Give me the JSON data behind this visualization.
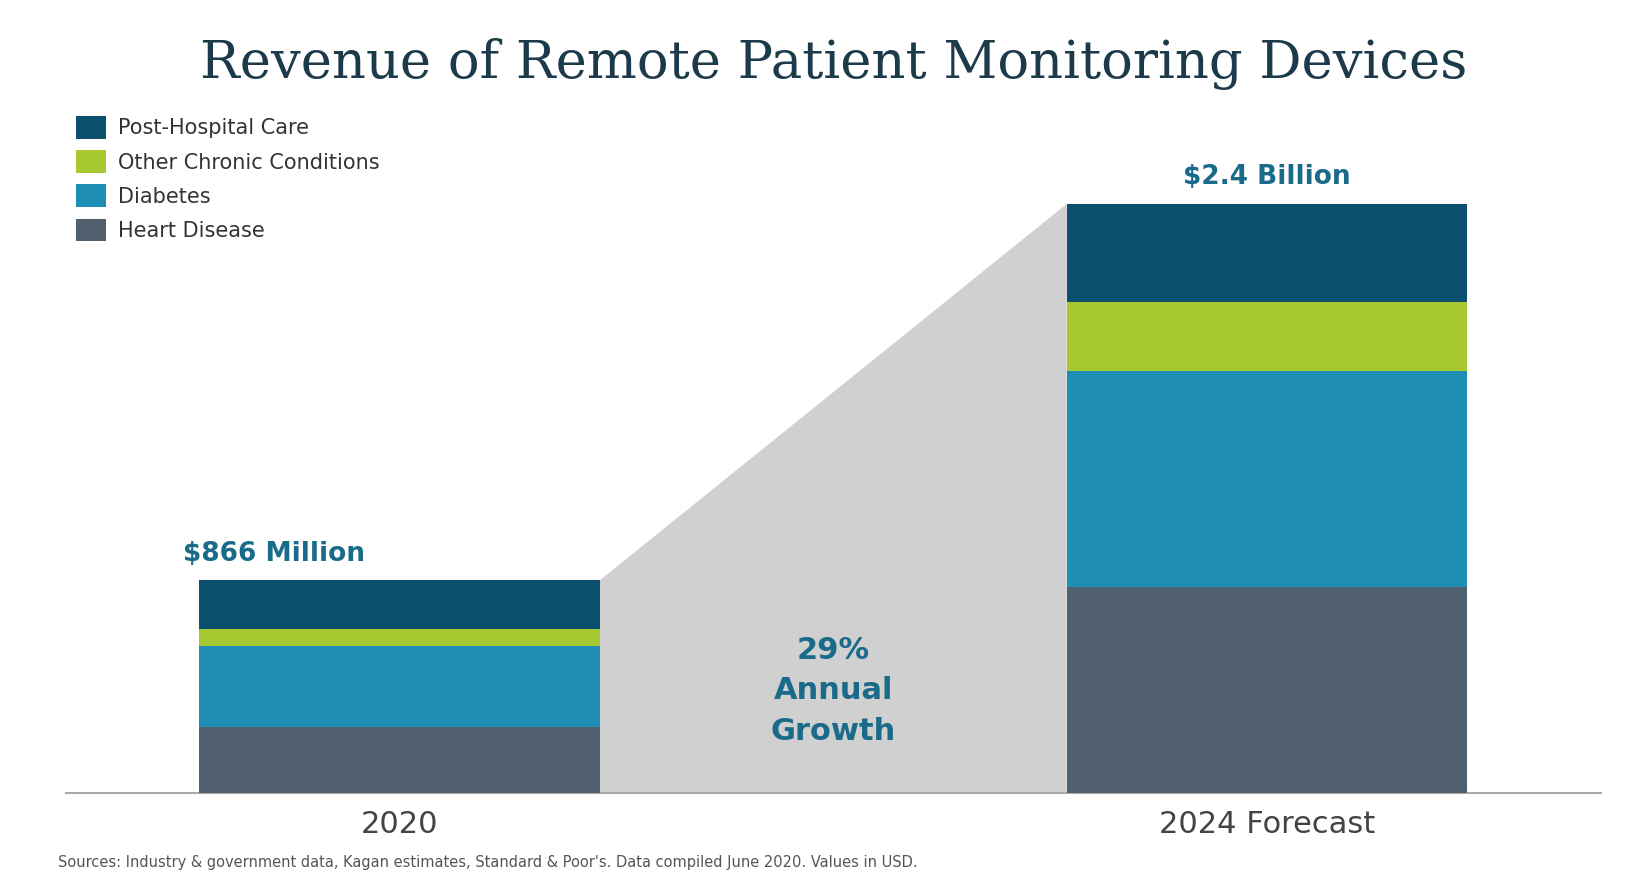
{
  "title": "Revenue of Remote Patient Monitoring Devices",
  "title_color": "#1c3a4a",
  "title_fontsize": 38,
  "background_color": "#ffffff",
  "categories": [
    "2020",
    "2024 Forecast"
  ],
  "segments_2020": {
    "heart_disease": 270,
    "diabetes": 330,
    "other_chronic": 66,
    "post_hospital": 200
  },
  "segments_2024": {
    "heart_disease": 840,
    "diabetes": 880,
    "other_chronic": 280,
    "post_hospital": 400
  },
  "colors": {
    "post_hospital": "#0d4f6e",
    "other_chronic": "#a8c832",
    "diabetes": "#1e8eb5",
    "heart_disease": "#50606e"
  },
  "legend_labels": [
    "Post-Hospital Care",
    "Other Chronic Conditions",
    "Diabetes",
    "Heart Disease"
  ],
  "legend_colors": [
    "#0d4f6e",
    "#a8c832",
    "#1e8eb5",
    "#50606e"
  ],
  "annotation_2020_text": "$866 Million",
  "annotation_2024_text": "$2.4 Billion",
  "annotation_growth_text": "29%\nAnnual\nGrowth",
  "annotation_color": "#1a6b8a",
  "source_text": "Sources: Industry & government data, Kagan estimates, Standard & Poor's. Data compiled June 2020. Values in USD.",
  "growth_fill_color": "#d0d0d0",
  "axis_line_color": "#aaaaaa",
  "tick_label_fontsize": 22,
  "tick_label_color": "#444444"
}
